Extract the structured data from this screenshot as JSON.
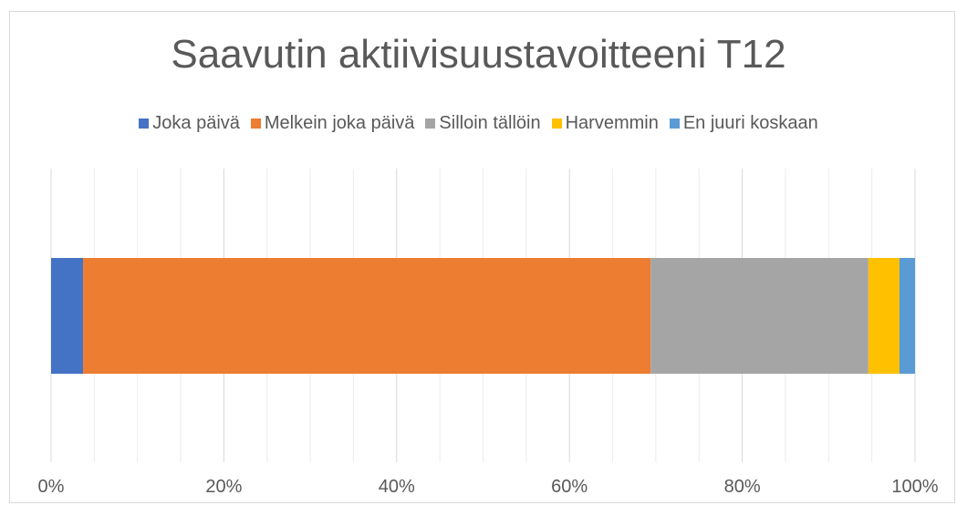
{
  "chart_data": {
    "type": "bar",
    "orientation": "horizontal",
    "stacked": "percent",
    "title": "Saavutin aktiivisuustavoitteeni T12",
    "categories": [
      ""
    ],
    "series": [
      {
        "name": "Joka päivä",
        "values": [
          3.7
        ],
        "color": "#4472c4"
      },
      {
        "name": "Melkein joka päivä",
        "values": [
          65.7
        ],
        "color": "#ed7d31"
      },
      {
        "name": "Silloin tällöin",
        "values": [
          25.2
        ],
        "color": "#a5a5a5"
      },
      {
        "name": "Harvemmin",
        "values": [
          3.6
        ],
        "color": "#ffc000"
      },
      {
        "name": "En juuri koskaan",
        "values": [
          1.8
        ],
        "color": "#5b9bd5"
      }
    ],
    "xlim": [
      0,
      100
    ],
    "xticks": [
      "0%",
      "20%",
      "40%",
      "60%",
      "80%",
      "100%"
    ],
    "grid": true,
    "legend": "top"
  }
}
